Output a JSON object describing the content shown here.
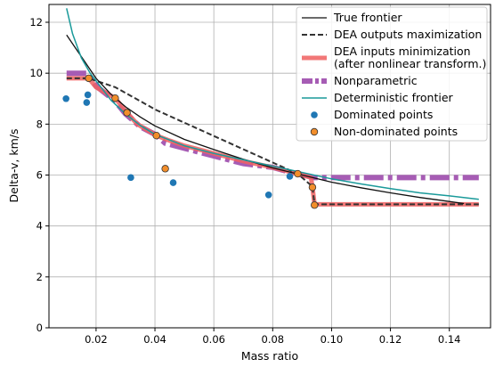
{
  "chart_data": {
    "type": "line",
    "xlabel": "Mass ratio",
    "ylabel": "Delta-v, km/s",
    "xlim": [
      0.004,
      0.154
    ],
    "ylim": [
      0,
      12.7
    ],
    "xticks": [
      0.02,
      0.04,
      0.06,
      0.08,
      0.1,
      0.12,
      0.14
    ],
    "xtick_labels": [
      "0.02",
      "0.04",
      "0.06",
      "0.08",
      "0.10",
      "0.12",
      "0.14"
    ],
    "yticks": [
      0,
      2,
      4,
      6,
      8,
      10,
      12
    ],
    "ytick_labels": [
      "0",
      "2",
      "4",
      "6",
      "8",
      "10",
      "12"
    ],
    "grid": true,
    "legend_position": "top-right",
    "series": [
      {
        "name": "Nonparametric",
        "kind": "line",
        "style": "dashdot",
        "color": "#a65cb4",
        "x": [
          0.01,
          0.017,
          0.02,
          0.0265,
          0.03,
          0.035,
          0.04,
          0.0435,
          0.05,
          0.055,
          0.06,
          0.07,
          0.08,
          0.088,
          0.0925,
          0.094,
          0.097,
          0.15
        ],
        "y": [
          10.0,
          10.0,
          9.5,
          8.9,
          8.4,
          7.9,
          7.6,
          7.25,
          7.05,
          6.9,
          6.75,
          6.45,
          6.3,
          6.05,
          5.95,
          5.9,
          5.9,
          5.9
        ]
      },
      {
        "name": "DEA inputs minimization\n(after nonlinear transform.)",
        "kind": "line",
        "style": "solid",
        "color": "#f06060",
        "x": [
          0.01,
          0.0175,
          0.02,
          0.0265,
          0.0305,
          0.034,
          0.0405,
          0.045,
          0.05,
          0.06,
          0.07,
          0.08,
          0.0885,
          0.093,
          0.0935,
          0.0942,
          0.096,
          0.15
        ],
        "y": [
          9.8,
          9.8,
          9.45,
          9.02,
          8.45,
          8.0,
          7.55,
          7.35,
          7.15,
          6.85,
          6.55,
          6.3,
          6.05,
          5.9,
          5.55,
          4.85,
          4.85,
          4.85
        ]
      },
      {
        "name": "DEA outputs maximization",
        "kind": "line",
        "style": "dashed",
        "color": "#333333",
        "x": [
          0.01,
          0.0175,
          0.0265,
          0.0405,
          0.0885,
          0.0935,
          0.0942,
          0.15
        ],
        "y": [
          9.8,
          9.8,
          9.45,
          8.55,
          6.05,
          5.55,
          4.85,
          4.85
        ]
      },
      {
        "name": "True frontier",
        "kind": "line",
        "style": "solid",
        "color": "#111111",
        "x": [
          0.01,
          0.015,
          0.02,
          0.025,
          0.03,
          0.035,
          0.04,
          0.05,
          0.06,
          0.07,
          0.08,
          0.09,
          0.1,
          0.11,
          0.12,
          0.13,
          0.14,
          0.145
        ],
        "y": [
          11.5,
          10.65,
          9.8,
          9.18,
          8.68,
          8.28,
          7.93,
          7.4,
          7.0,
          6.62,
          6.28,
          6.0,
          5.72,
          5.5,
          5.3,
          5.12,
          4.96,
          4.88
        ]
      },
      {
        "name": "Deterministic frontier",
        "kind": "line",
        "style": "solid",
        "color": "#1a9a9a",
        "x": [
          0.01,
          0.012,
          0.015,
          0.018,
          0.02,
          0.025,
          0.03,
          0.035,
          0.04,
          0.05,
          0.06,
          0.07,
          0.08,
          0.09,
          0.1,
          0.11,
          0.12,
          0.13,
          0.14,
          0.15
        ],
        "y": [
          12.55,
          11.55,
          10.6,
          10.0,
          9.7,
          8.95,
          8.4,
          7.95,
          7.6,
          7.15,
          6.85,
          6.6,
          6.35,
          6.1,
          5.85,
          5.65,
          5.47,
          5.3,
          5.18,
          5.05
        ]
      },
      {
        "name": "Dominated points",
        "kind": "scatter",
        "color": "#1f77b4",
        "x": [
          0.0098,
          0.0168,
          0.0172,
          0.0318,
          0.0462,
          0.0786,
          0.0858
        ],
        "y": [
          9.0,
          8.85,
          9.15,
          5.9,
          5.7,
          5.22,
          5.95
        ]
      },
      {
        "name": "Non-dominated points",
        "kind": "scatter",
        "color": "#f28e2b",
        "x": [
          0.0175,
          0.0265,
          0.0305,
          0.0405,
          0.0435,
          0.0885,
          0.0935,
          0.0942
        ],
        "y": [
          9.8,
          9.02,
          8.45,
          7.55,
          6.25,
          6.05,
          5.52,
          4.82
        ]
      }
    ],
    "legend_order": [
      "True frontier",
      "DEA outputs maximization",
      "DEA inputs minimization\n(after nonlinear transform.)",
      "Nonparametric",
      "Deterministic frontier",
      "Dominated points",
      "Non-dominated points"
    ]
  }
}
